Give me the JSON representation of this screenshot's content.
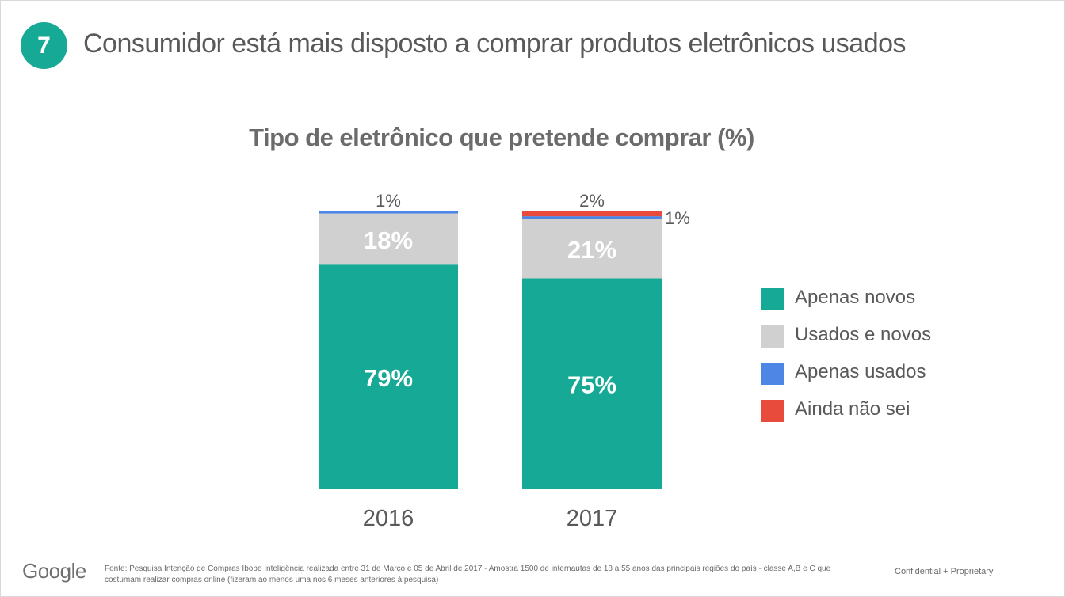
{
  "header": {
    "number": "7",
    "title": "Consumidor está mais disposto a comprar produtos eletrônicos usados"
  },
  "chart_data": {
    "type": "bar",
    "stacked": true,
    "title": "Tipo de eletrônico que pretende comprar (%)",
    "categories": [
      "2016",
      "2017"
    ],
    "series": [
      {
        "name": "Apenas novos",
        "color": "#16a996",
        "values": [
          79,
          75
        ],
        "labels": [
          "79%",
          "75%"
        ]
      },
      {
        "name": "Usados e novos",
        "color": "#d0d0d0",
        "values": [
          18,
          21
        ],
        "labels": [
          "18%",
          "21%"
        ]
      },
      {
        "name": "Apenas usados",
        "color": "#4e86e6",
        "values": [
          1,
          1
        ],
        "labels": [
          "1%",
          "1%"
        ]
      },
      {
        "name": "Ainda não sei",
        "color": "#e84a3c",
        "values": [
          0,
          2
        ],
        "labels": [
          "",
          "2%"
        ]
      }
    ],
    "legend_position": "right",
    "grid": false
  },
  "footer": {
    "logo": "Google",
    "source": "Fonte: Pesquisa Intenção de Compras Ibope Inteligência realizada entre 31 de Março e 05 de Abril de 2017 - Amostra 1500 de internautas de 18 a 55 anos das principais regiões do país - classe A,B e C que costumam realizar compras online (fizeram ao menos uma nos 6 meses anteriores à pesquisa)",
    "confidential": "Confidential + Proprietary"
  }
}
